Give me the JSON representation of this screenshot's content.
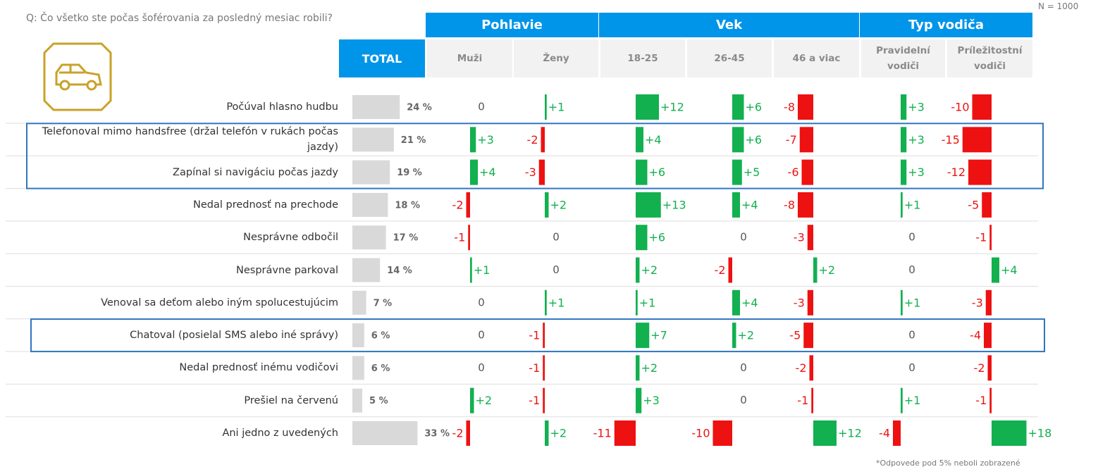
{
  "question": "Q: Čo všetko ste počas šoférovania za posledný mesiac robili?",
  "sample": "N = 1000",
  "footnote": "*Odpovede pod 5% neboli zobrazené",
  "chart_data": {
    "type": "deviation-table",
    "total_header": "TOTAL",
    "categories": [
      "Počúval hlasno hudbu",
      "Telefonoval mimo handsfree (držal telefón v rukách počas jazdy)",
      "Zapínal si navigáciu počas jazdy",
      "Nedal prednosť na prechode",
      "Nesprávne odbočil",
      "Nesprávne parkoval",
      "Venoval sa deťom alebo iným spolucestujúcim",
      "Chatoval (posielal SMS alebo iné správy)",
      "Nedal prednosť inému vodičovi",
      "Prešiel na červenú",
      "Ani jedno z uvedených"
    ],
    "total": {
      "color": "#d9d9d9",
      "values": [
        24,
        21,
        19,
        18,
        17,
        14,
        7,
        6,
        6,
        5,
        33
      ],
      "value_labels": [
        "24 %",
        "21 %",
        "19 %",
        "18 %",
        "17 %",
        "14 %",
        "7 %",
        "6 %",
        "6 %",
        "5 %",
        "33 %"
      ]
    },
    "positive_color": "#12b04f",
    "negative_color": "#ee1111",
    "highlight_groups": [
      [
        1,
        2
      ],
      [
        7
      ]
    ],
    "groups": [
      {
        "name": "Pohlavie",
        "series": [
          {
            "name": "Muži",
            "values": [
              0,
              3,
              4,
              -2,
              -1,
              1,
              0,
              0,
              0,
              2,
              -2
            ],
            "value_labels": [
              "0",
              "+3",
              "+4",
              "-2",
              "-1",
              "+1",
              "0",
              "0",
              "0",
              "+2",
              "-2"
            ]
          },
          {
            "name": "Ženy",
            "values": [
              1,
              -2,
              -3,
              2,
              0,
              0,
              1,
              -1,
              -1,
              -1,
              2
            ],
            "value_labels": [
              "+1",
              "-2",
              "-3",
              "+2",
              "0",
              "0",
              "+1",
              "-1",
              "-1",
              "-1",
              "+2"
            ]
          }
        ]
      },
      {
        "name": "Vek",
        "series": [
          {
            "name": "18-25",
            "values": [
              12,
              4,
              6,
              13,
              6,
              2,
              1,
              7,
              2,
              3,
              -11
            ],
            "value_labels": [
              "+12",
              "+4",
              "+6",
              "+13",
              "+6",
              "+2",
              "+1",
              "+7",
              "+2",
              "+3",
              "-11"
            ]
          },
          {
            "name": "26-45",
            "values": [
              6,
              6,
              5,
              4,
              0,
              -2,
              4,
              2,
              0,
              0,
              -10
            ],
            "value_labels": [
              "+6",
              "+6",
              "+5",
              "+4",
              "0",
              "-2",
              "+4",
              "+2",
              "0",
              "0",
              "-10"
            ]
          },
          {
            "name": "46 a viac",
            "values": [
              -8,
              -7,
              -6,
              -8,
              -3,
              2,
              -3,
              -5,
              -2,
              -1,
              12
            ],
            "value_labels": [
              "-8",
              "-7",
              "-6",
              "-8",
              "-3",
              "+2",
              "-3",
              "-5",
              "-2",
              "-1",
              "+12"
            ]
          }
        ]
      },
      {
        "name": "Typ vodiča",
        "series": [
          {
            "name": "Pravidelní vodiči",
            "values": [
              3,
              3,
              3,
              1,
              0,
              0,
              1,
              0,
              0,
              1,
              -4
            ],
            "value_labels": [
              "+3",
              "+3",
              "+3",
              "+1",
              "0",
              "0",
              "+1",
              "0",
              "0",
              "+1",
              "-4"
            ]
          },
          {
            "name": "Príležitostní vodiči",
            "values": [
              -10,
              -15,
              -12,
              -5,
              -1,
              4,
              -3,
              -4,
              -2,
              -1,
              18
            ],
            "value_labels": [
              "-10",
              "-15",
              "-12",
              "-5",
              "-1",
              "+4",
              "-3",
              "-4",
              "-2",
              "-1",
              "+18"
            ]
          }
        ]
      }
    ]
  }
}
